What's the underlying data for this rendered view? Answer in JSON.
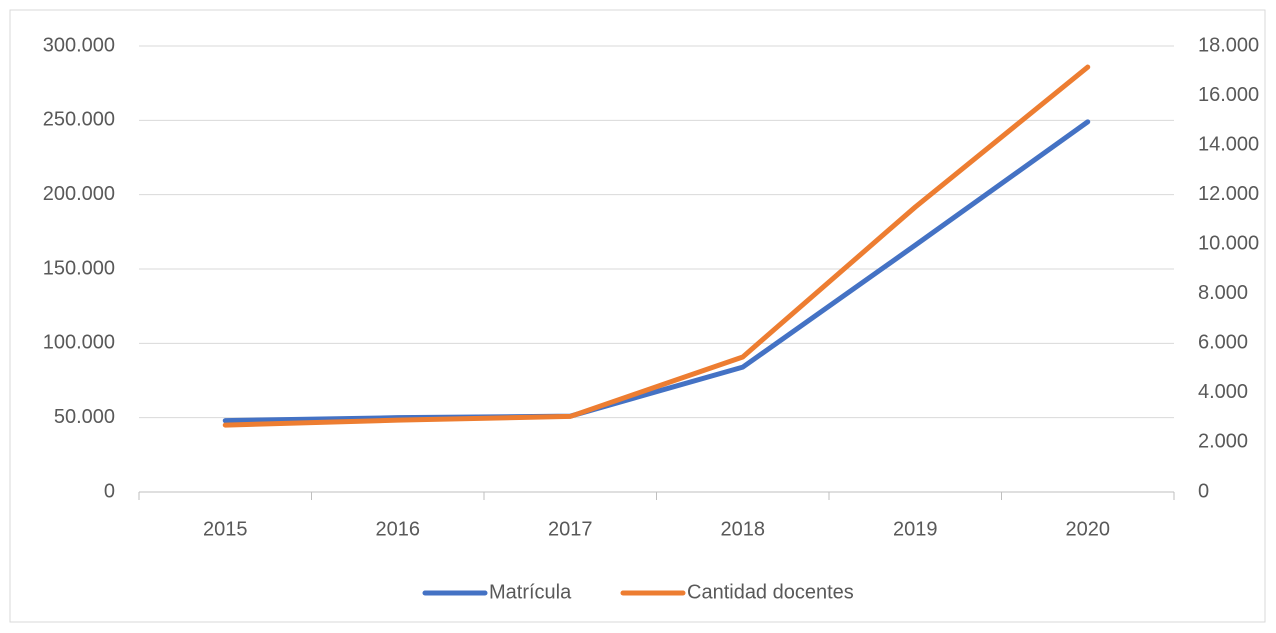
{
  "chart_data": {
    "type": "line",
    "categories": [
      "2015",
      "2016",
      "2017",
      "2018",
      "2019",
      "2020"
    ],
    "series": [
      {
        "name": "Matrícula",
        "color": "#4472c4",
        "values": [
          48000,
          50000,
          51000,
          84000,
          166000,
          249000
        ]
      },
      {
        "name": "Cantidad docentes",
        "color": "#ed7d31",
        "axis": "y2",
        "values": [
          2700,
          2900,
          3050,
          5450,
          11500,
          17150
        ]
      }
    ],
    "ylim": [
      0,
      300000
    ],
    "yticks": [
      0,
      {
        "value": 50000,
        "label": "50.000"
      },
      {
        "value": 100000,
        "label": "100.000"
      },
      {
        "value": 150000,
        "label": "150.000"
      },
      {
        "value": 200000,
        "label": "200.000"
      },
      {
        "value": 250000,
        "label": "250.000"
      },
      {
        "value": 300000,
        "label": "300.000"
      }
    ],
    "y2lim": [
      0,
      18000
    ],
    "y2ticks": [
      0,
      {
        "value": 2000,
        "label": "2.000"
      },
      {
        "value": 4000,
        "label": "4.000"
      },
      {
        "value": 6000,
        "label": "6.000"
      },
      {
        "value": 8000,
        "label": "8.000"
      },
      {
        "value": 10000,
        "label": "10.000"
      },
      {
        "value": 12000,
        "label": "12.000"
      },
      {
        "value": 14000,
        "label": "14.000"
      },
      {
        "value": 16000,
        "label": "16.000"
      },
      {
        "value": 18000,
        "label": "18.000"
      }
    ],
    "grid": true,
    "legend": "bottom"
  }
}
